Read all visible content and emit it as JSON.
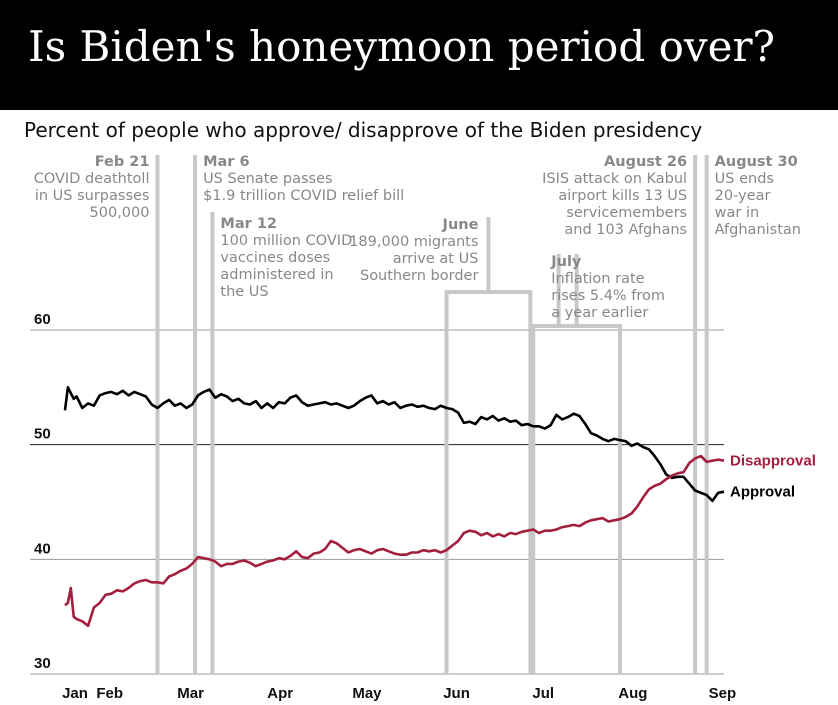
{
  "header": {
    "title": "Is Biden's honeymoon period over?",
    "subtitle": "Percent of people who approve/ disapprove of the Biden presidency"
  },
  "chart_data": {
    "type": "line",
    "title": "Is Biden's honeymoon period over?",
    "subtitle": "Percent of people who approve/ disapprove of the Biden presidency",
    "xlabel": "",
    "ylabel": "",
    "x_ticks": [
      {
        "label": "Jan",
        "day": 20
      },
      {
        "label": "Feb",
        "day": 32
      },
      {
        "label": "Mar",
        "day": 60
      },
      {
        "label": "Apr",
        "day": 91
      },
      {
        "label": "May",
        "day": 121
      },
      {
        "label": "Jun",
        "day": 152
      },
      {
        "label": "Jul",
        "day": 182
      },
      {
        "label": "Aug",
        "day": 213
      },
      {
        "label": "Sep",
        "day": 244
      }
    ],
    "xlim": [
      20,
      248
    ],
    "ylim": [
      30,
      60
    ],
    "yticks": [
      30,
      40,
      50,
      60
    ],
    "grid": true,
    "colors": {
      "approval": "#000000",
      "disapproval": "#a31f3e",
      "gridline": "#999999",
      "annotation_line": "#c8c8c8",
      "annotation_text": "#888888"
    },
    "series": [
      {
        "name": "Approval",
        "color": "#000000",
        "x": [
          20,
          21,
          22,
          23,
          24,
          26,
          28,
          30,
          32,
          34,
          36,
          38,
          40,
          42,
          44,
          46,
          48,
          50,
          52,
          54,
          56,
          58,
          60,
          62,
          64,
          66,
          68,
          70,
          72,
          74,
          76,
          78,
          80,
          82,
          84,
          86,
          88,
          90,
          92,
          94,
          96,
          98,
          100,
          102,
          104,
          106,
          108,
          110,
          112,
          114,
          116,
          118,
          120,
          122,
          124,
          126,
          128,
          130,
          132,
          134,
          136,
          138,
          140,
          142,
          144,
          146,
          148,
          150,
          152,
          154,
          156,
          158,
          160,
          162,
          164,
          166,
          168,
          170,
          172,
          174,
          176,
          178,
          180,
          182,
          184,
          186,
          188,
          190,
          192,
          194,
          196,
          198,
          200,
          202,
          204,
          206,
          208,
          210,
          212,
          214,
          216,
          218,
          220,
          222,
          224,
          226,
          228,
          230,
          232,
          234,
          236,
          238,
          240,
          242,
          244,
          246,
          248
        ],
        "values": [
          53.0,
          55.0,
          54.5,
          54.0,
          54.2,
          53.2,
          53.6,
          53.4,
          54.3,
          54.5,
          54.6,
          54.4,
          54.7,
          54.3,
          54.6,
          54.4,
          54.2,
          53.5,
          53.2,
          53.6,
          53.9,
          53.4,
          53.6,
          53.2,
          53.5,
          54.3,
          54.6,
          54.8,
          54.1,
          54.4,
          54.2,
          53.8,
          54.0,
          53.6,
          53.5,
          53.8,
          53.2,
          53.6,
          53.2,
          53.7,
          53.6,
          54.1,
          54.3,
          53.7,
          53.4,
          53.5,
          53.6,
          53.7,
          53.5,
          53.6,
          53.4,
          53.2,
          53.4,
          53.8,
          54.1,
          54.3,
          53.6,
          53.8,
          53.5,
          53.7,
          53.2,
          53.4,
          53.5,
          53.3,
          53.4,
          53.2,
          53.1,
          53.4,
          53.2,
          53.1,
          52.8,
          51.9,
          52.0,
          51.8,
          52.4,
          52.2,
          52.5,
          52.1,
          52.3,
          52.0,
          52.1,
          51.7,
          51.8,
          51.6,
          51.6,
          51.4,
          51.7,
          52.6,
          52.2,
          52.4,
          52.7,
          52.5,
          51.8,
          51.0,
          50.8,
          50.5,
          50.3,
          50.5,
          50.4,
          50.3,
          49.9,
          50.1,
          49.8,
          49.6,
          49.0,
          48.3,
          47.4,
          47.1,
          47.2,
          47.2,
          46.6,
          46.0,
          45.8,
          45.6,
          45.1,
          45.8,
          45.9
        ]
      },
      {
        "name": "Disapproval",
        "color": "#a31f3e",
        "x": [
          20,
          21,
          22,
          23,
          24,
          26,
          28,
          30,
          32,
          34,
          36,
          38,
          40,
          42,
          44,
          46,
          48,
          50,
          52,
          54,
          56,
          58,
          60,
          62,
          64,
          66,
          68,
          70,
          72,
          74,
          76,
          78,
          80,
          82,
          84,
          86,
          88,
          90,
          92,
          94,
          96,
          98,
          100,
          102,
          104,
          106,
          108,
          110,
          112,
          114,
          116,
          118,
          120,
          122,
          124,
          126,
          128,
          130,
          132,
          134,
          136,
          138,
          140,
          142,
          144,
          146,
          148,
          150,
          152,
          154,
          156,
          158,
          160,
          162,
          164,
          166,
          168,
          170,
          172,
          174,
          176,
          178,
          180,
          182,
          184,
          186,
          188,
          190,
          192,
          194,
          196,
          198,
          200,
          202,
          204,
          206,
          208,
          210,
          212,
          214,
          216,
          218,
          220,
          222,
          224,
          226,
          228,
          230,
          232,
          234,
          236,
          238,
          240,
          242,
          244,
          246,
          248
        ],
        "values": [
          36.0,
          36.2,
          37.5,
          35.0,
          34.8,
          34.6,
          34.2,
          35.8,
          36.2,
          36.9,
          37.0,
          37.3,
          37.2,
          37.5,
          37.9,
          38.1,
          38.2,
          38.0,
          38.0,
          37.9,
          38.5,
          38.7,
          39.0,
          39.2,
          39.6,
          40.2,
          40.1,
          40.0,
          39.8,
          39.4,
          39.6,
          39.6,
          39.8,
          39.9,
          39.7,
          39.4,
          39.6,
          39.8,
          39.9,
          40.1,
          40.0,
          40.3,
          40.7,
          40.2,
          40.1,
          40.5,
          40.6,
          40.9,
          41.6,
          41.4,
          41.0,
          40.6,
          40.8,
          40.9,
          40.7,
          40.5,
          40.8,
          40.9,
          40.7,
          40.5,
          40.4,
          40.4,
          40.6,
          40.6,
          40.8,
          40.7,
          40.8,
          40.6,
          40.8,
          41.2,
          41.6,
          42.3,
          42.5,
          42.4,
          42.1,
          42.3,
          42.0,
          42.2,
          42.0,
          42.3,
          42.2,
          42.4,
          42.5,
          42.6,
          42.3,
          42.5,
          42.5,
          42.6,
          42.8,
          42.9,
          43.0,
          42.9,
          43.2,
          43.4,
          43.5,
          43.6,
          43.3,
          43.4,
          43.5,
          43.7,
          44.0,
          44.6,
          45.4,
          46.1,
          46.4,
          46.6,
          47.0,
          47.3,
          47.5,
          47.6,
          48.4,
          48.8,
          49.0,
          48.5,
          48.6,
          48.7,
          48.6
        ]
      }
    ],
    "annotations": [
      {
        "day": 52,
        "date": "Feb 21",
        "text": [
          "COVID deathtoll",
          "in US surpasses",
          "500,000"
        ]
      },
      {
        "day": 65,
        "date": "Mar 6",
        "text": [
          "US Senate passes",
          "$1.9 trillion COVID relief bill"
        ]
      },
      {
        "day": 71,
        "date": "Mar 12",
        "text": [
          "100 million COVID",
          "vaccines doses",
          "administered in",
          "the US"
        ]
      },
      {
        "day_range": [
          152,
          181
        ],
        "date": "June",
        "text": [
          "189,000 migrants",
          "arrive at US",
          "Southern border"
        ]
      },
      {
        "day_range": [
          182,
          212
        ],
        "date": "July",
        "text": [
          "Inflation rate",
          "rises 5.4% from",
          "a year earlier"
        ]
      },
      {
        "day": 238,
        "date": "August 26",
        "text": [
          "ISIS attack on Kabul",
          "airport kills 13 US",
          "servicemembers",
          "and 103 Afghans"
        ]
      },
      {
        "day": 242,
        "date": "August 30",
        "text": [
          "US ends",
          "20-year",
          "war in",
          "Afghanistan"
        ]
      }
    ]
  }
}
